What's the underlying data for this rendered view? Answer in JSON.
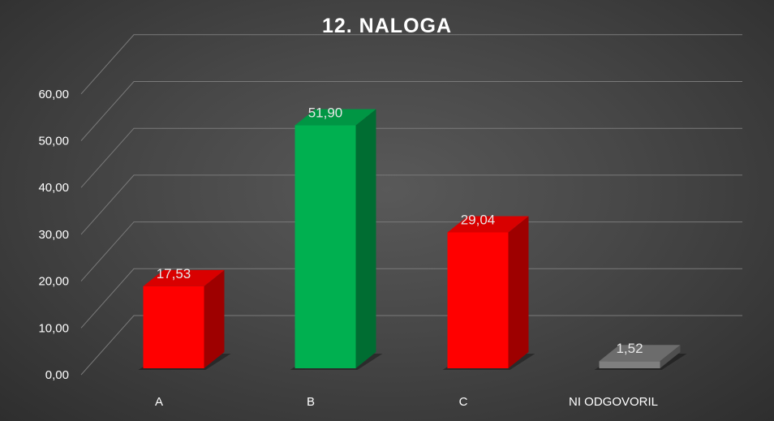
{
  "chart_data": {
    "type": "bar",
    "title": "12. NALOGA",
    "categories": [
      "A",
      "B",
      "C",
      "NI ODGOVORIL"
    ],
    "values": [
      17.53,
      51.9,
      29.04,
      1.52
    ],
    "value_labels": [
      "17,53",
      "51,90",
      "29,04",
      "1,52"
    ],
    "colors": [
      "#ff0000",
      "#00b050",
      "#ff0000",
      "#7f7f7f"
    ],
    "yticks": [
      "0,00",
      "10,00",
      "20,00",
      "30,00",
      "40,00",
      "50,00",
      "60,00"
    ],
    "ylim": [
      0,
      60
    ],
    "grid": true,
    "style": "3d-column",
    "xlabel": "",
    "ylabel": ""
  }
}
